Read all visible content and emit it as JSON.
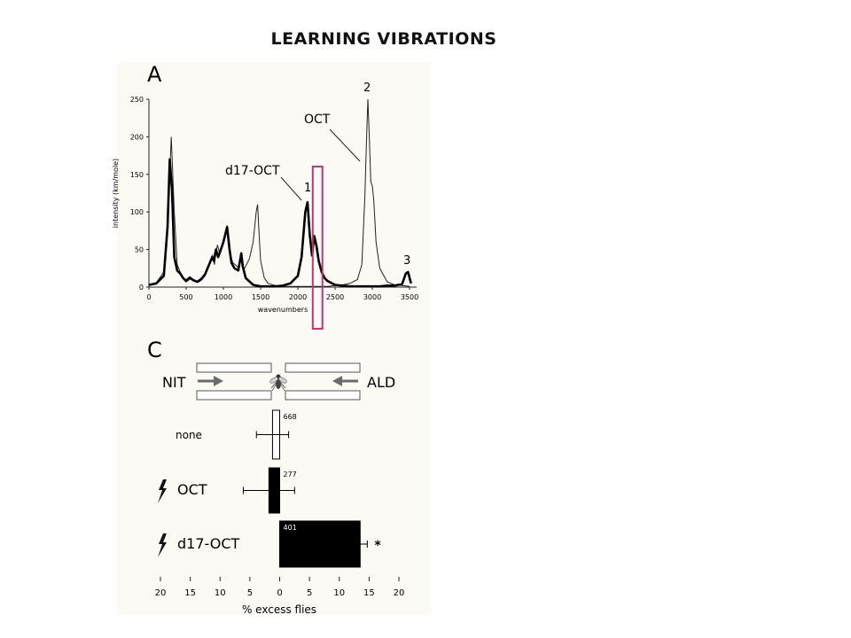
{
  "slide": {
    "title": "LEARNING VIBRATIONS"
  },
  "colors": {
    "highlight": "#c8326e",
    "bar_dark": "#000000",
    "bar_light": "#ffffff",
    "arrow": "#6b6b6b"
  },
  "chart_data": [
    {
      "panel": "A",
      "type": "line",
      "xlabel": "wavenumbers",
      "ylabel": "intensity (km/mole)",
      "xlim": [
        0,
        3500
      ],
      "ylim": [
        0,
        250
      ],
      "xticks": [
        0,
        500,
        1000,
        1500,
        2000,
        2500,
        3000,
        3500
      ],
      "yticks": [
        0,
        50,
        100,
        150,
        200,
        250
      ],
      "series": [
        {
          "name": "OCT",
          "style": "thin",
          "x": [
            0,
            100,
            200,
            260,
            300,
            340,
            380,
            420,
            460,
            500,
            550,
            600,
            650,
            700,
            750,
            800,
            850,
            880,
            900,
            920,
            950,
            1000,
            1050,
            1080,
            1100,
            1130,
            1160,
            1200,
            1240,
            1270,
            1300,
            1350,
            1400,
            1440,
            1460,
            1480,
            1500,
            1550,
            1600,
            1700,
            1800,
            1900,
            2000,
            2100,
            2200,
            2300,
            2400,
            2500,
            2600,
            2700,
            2800,
            2860,
            2900,
            2920,
            2940,
            2960,
            2980,
            3000,
            3020,
            3050,
            3100,
            3200,
            3300,
            3400,
            3500
          ],
          "y": [
            3,
            6,
            20,
            100,
            200,
            100,
            30,
            20,
            12,
            10,
            14,
            10,
            8,
            12,
            18,
            28,
            42,
            30,
            45,
            56,
            45,
            62,
            82,
            62,
            40,
            32,
            30,
            26,
            36,
            22,
            28,
            38,
            60,
            100,
            110,
            70,
            35,
            12,
            5,
            2,
            1,
            1,
            1,
            1,
            1,
            1,
            1,
            2,
            3,
            5,
            10,
            30,
            120,
            190,
            250,
            200,
            140,
            135,
            115,
            60,
            25,
            7,
            3,
            2,
            1
          ]
        },
        {
          "name": "d17-OCT",
          "style": "thick",
          "x": [
            0,
            100,
            200,
            250,
            280,
            310,
            340,
            380,
            420,
            460,
            500,
            550,
            600,
            650,
            700,
            750,
            800,
            850,
            870,
            900,
            930,
            960,
            1000,
            1050,
            1080,
            1110,
            1150,
            1200,
            1240,
            1260,
            1300,
            1400,
            1500,
            1600,
            1700,
            1800,
            1900,
            2000,
            2050,
            2100,
            2130,
            2160,
            2190,
            2220,
            2250,
            2280,
            2320,
            2360,
            2400,
            2500,
            2600,
            2700,
            2800,
            2900,
            3000,
            3100,
            3200,
            3300,
            3400,
            3450,
            3480,
            3520
          ],
          "y": [
            3,
            5,
            15,
            80,
            170,
            130,
            40,
            22,
            18,
            12,
            8,
            12,
            9,
            7,
            10,
            16,
            28,
            40,
            35,
            50,
            40,
            48,
            60,
            80,
            52,
            32,
            25,
            22,
            45,
            28,
            12,
            3,
            1,
            1,
            1,
            2,
            5,
            15,
            40,
            100,
            113,
            70,
            42,
            68,
            55,
            35,
            20,
            12,
            8,
            3,
            2,
            1,
            1,
            1,
            1,
            1,
            2,
            2,
            4,
            18,
            20,
            5
          ]
        }
      ],
      "annotations": [
        {
          "text": "OCT",
          "x": 2700,
          "y": 155
        },
        {
          "text": "d17-OCT",
          "x": 1780,
          "y": 110
        },
        {
          "text": "1",
          "x": 2130,
          "y": 113
        },
        {
          "text": "2",
          "x": 2940,
          "y": 250
        },
        {
          "text": "3",
          "x": 3460,
          "y": 20
        }
      ],
      "highlight_band": {
        "x_from": 2200,
        "x_to": 2330
      }
    },
    {
      "panel": "C",
      "type": "bar",
      "orientation": "horizontal",
      "xlabel": "% excess flies",
      "xlim": [
        -20,
        20
      ],
      "xtick_labels": [
        "20",
        "15",
        "10",
        "5",
        "0",
        "5",
        "10",
        "15",
        "20"
      ],
      "xtick_values": [
        -20,
        -15,
        -10,
        -5,
        0,
        5,
        10,
        15,
        20
      ],
      "diagram": {
        "left_label": "NIT",
        "right_label": "ALD"
      },
      "categories": [
        "none",
        "OCT",
        "d17-OCT"
      ],
      "values": [
        -1.2,
        -1.8,
        13.5
      ],
      "errors": [
        2.7,
        4.3,
        1.2
      ],
      "n": [
        "668",
        "277",
        "401"
      ],
      "fills": [
        "white",
        "black",
        "black"
      ],
      "shock": [
        false,
        true,
        true
      ],
      "significance": [
        "",
        "",
        "*"
      ]
    }
  ]
}
